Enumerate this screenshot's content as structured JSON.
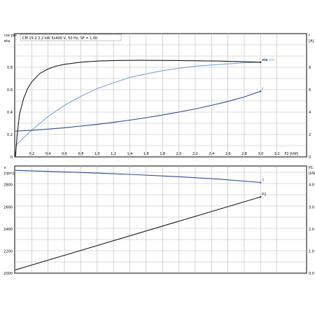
{
  "header": "CM 15-2 2.2 kW 3x400 V, 50 Hz, SF = 1.00",
  "colors": {
    "grid": "#b8b8b8",
    "frame": "#000000",
    "dark": "#1a1a1a",
    "blue_dark": "#2e4a86",
    "blue_light": "#7da3d0"
  },
  "chart_data": [
    {
      "type": "line",
      "x_ticks": [
        "0",
        "0,2",
        "0,4",
        "0,6",
        "0,8",
        "1,0",
        "1,2",
        "1,4",
        "1,6",
        "1,8",
        "2,0",
        "2,2",
        "2,4",
        "2,6",
        "2,8",
        "3,0",
        "3,2"
      ],
      "x_end_label": "P2 [kW]",
      "xlim": [
        0,
        3.4
      ],
      "left_axis": {
        "label_line1": "cos phi",
        "label_line2": "eta",
        "ticks": [
          "0",
          "0.2",
          "0.4",
          "0.6",
          "0.8"
        ],
        "ylim": [
          0,
          1.0
        ]
      },
      "right_axis": {
        "label_line1": "I",
        "label_line2": "[A]",
        "ticks": [
          "0",
          "2",
          "4",
          "6",
          "8"
        ],
        "ylim": [
          0,
          10
        ]
      },
      "series": [
        {
          "name": "cos phi",
          "axis": "left",
          "color": "#7da3d0",
          "x": [
            0.0,
            0.2,
            0.4,
            0.6,
            0.8,
            1.0,
            1.2,
            1.4,
            1.6,
            1.8,
            2.0,
            2.2,
            2.4,
            2.6,
            2.8,
            3.0
          ],
          "y": [
            0.1,
            0.24,
            0.36,
            0.46,
            0.54,
            0.61,
            0.66,
            0.71,
            0.74,
            0.77,
            0.79,
            0.81,
            0.82,
            0.83,
            0.84,
            0.845
          ]
        },
        {
          "name": "eta",
          "axis": "left",
          "color": "#1a1a1a",
          "x": [
            0.0,
            0.02,
            0.05,
            0.1,
            0.15,
            0.2,
            0.3,
            0.4,
            0.5,
            0.6,
            0.8,
            1.0,
            1.2,
            1.5,
            2.0,
            2.5,
            3.0
          ],
          "y": [
            0.0,
            0.18,
            0.38,
            0.52,
            0.61,
            0.67,
            0.745,
            0.785,
            0.81,
            0.826,
            0.845,
            0.855,
            0.86,
            0.862,
            0.86,
            0.855,
            0.845
          ]
        },
        {
          "name": "I",
          "axis": "right",
          "color": "#2e4a86",
          "x": [
            0.0,
            0.2,
            0.4,
            0.6,
            0.8,
            1.0,
            1.2,
            1.4,
            1.6,
            1.8,
            2.0,
            2.2,
            2.4,
            2.6,
            2.8,
            3.0
          ],
          "y": [
            2.3,
            2.38,
            2.48,
            2.6,
            2.75,
            2.9,
            3.08,
            3.28,
            3.5,
            3.74,
            4.0,
            4.28,
            4.6,
            4.95,
            5.35,
            5.85
          ]
        }
      ]
    },
    {
      "type": "line",
      "xlim": [
        0,
        3.4
      ],
      "left_axis": {
        "label_line1": "n",
        "label_line2": "[rpm]",
        "ticks": [
          "2000",
          "2200",
          "2400",
          "2600",
          "2800"
        ],
        "ylim": [
          2000,
          2950
        ]
      },
      "right_axis": {
        "label_line1": "P1",
        "label_line2": "[kW]",
        "ticks": [
          "0.0",
          "1.0",
          "2.0",
          "3.0",
          "4.0"
        ],
        "ylim": [
          0,
          4.75
        ]
      },
      "series": [
        {
          "name": "n",
          "axis": "left",
          "color": "#2e4a86",
          "x": [
            0.0,
            0.5,
            1.0,
            1.5,
            2.0,
            2.5,
            3.0
          ],
          "y": [
            2930,
            2918,
            2905,
            2890,
            2872,
            2850,
            2820
          ]
        },
        {
          "name": "P1",
          "axis": "right",
          "color": "#1a1a1a",
          "x": [
            0.0,
            3.0
          ],
          "y": [
            0.15,
            3.45
          ]
        }
      ]
    }
  ]
}
